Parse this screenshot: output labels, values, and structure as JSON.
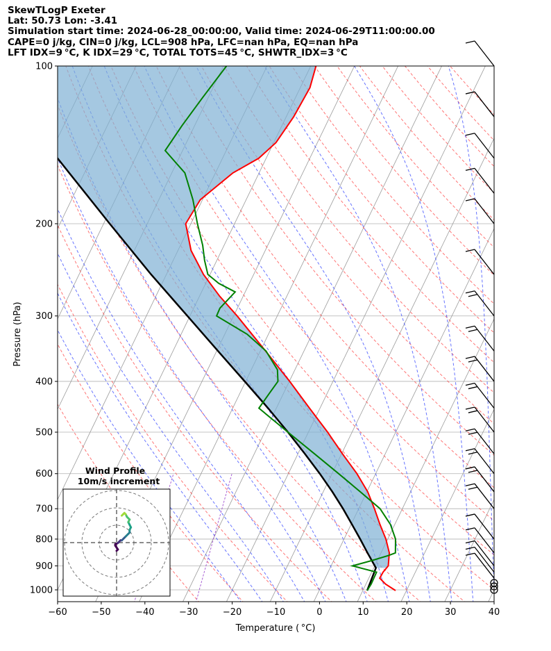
{
  "header": {
    "line1": "SkewTLogP Exeter",
    "line2": "Lat: 50.73   Lon: -3.41",
    "line3": "Simulation start time: 2024-06-28_00:00:00, Valid time: 2024-06-29T11:00:00.00",
    "line4": "CAPE=0 j/kg, CIN=0 j/kg, LCL=908 hPa, LFC=nan hPa, EQ=nan hPa",
    "line5": "LFT IDX=9 °C, K IDX=29 °C, TOTAL TOTS=45 °C, SHWTR_IDX=3 °C"
  },
  "axes": {
    "xlabel": "Temperature ( °C)",
    "ylabel": "Pressure (hPa)",
    "xticks": [
      "−60",
      "−50",
      "−40",
      "−30",
      "−20",
      "−10",
      "0",
      "10",
      "20",
      "30",
      "40"
    ],
    "yticks": [
      "100",
      "200",
      "300",
      "400",
      "500",
      "600",
      "700",
      "800",
      "900",
      "1000"
    ]
  },
  "inset": {
    "title1": "Wind Profile",
    "title2": "10m/s increment"
  },
  "colors": {
    "temperature": "#ff0000",
    "dewpoint": "#008000",
    "parcel": "#000000",
    "cape_fill": "#7fb0d4",
    "dry_adiabat": "#ff4444",
    "moist_adiabat": "#3344ff",
    "mixing_ratio": "#9944cc",
    "isotherm": "#9a9a9a",
    "isobar": "#b0b0b0"
  },
  "chart_data": {
    "type": "skewt",
    "title": "SkewTLogP Exeter",
    "xlabel": "Temperature ( °C)",
    "ylabel": "Pressure (hPa)",
    "xlim": [
      -60,
      40
    ],
    "ylim": [
      1050,
      100
    ],
    "skew_deg_c_per_decade_log_p": 58,
    "temperature_profile": {
      "p": [
        1003,
        975,
        950,
        925,
        900,
        850,
        800,
        750,
        700,
        650,
        600,
        550,
        500,
        450,
        400,
        350,
        300,
        275,
        250,
        225,
        200,
        180,
        160,
        150,
        140,
        125,
        110,
        100
      ],
      "t": [
        17.5,
        14.5,
        12.5,
        12.6,
        13.1,
        11.9,
        9.6,
        6.6,
        3.6,
        0.2,
        -4.3,
        -9.8,
        -15.6,
        -22.4,
        -29.9,
        -38.8,
        -49.2,
        -55.4,
        -61.5,
        -67.0,
        -71.2,
        -70.5,
        -66.0,
        -61.7,
        -59.5,
        -58.3,
        -57.8,
        -58.8
      ]
    },
    "dewpoint_profile": {
      "p": [
        1003,
        975,
        925,
        900,
        880,
        860,
        850,
        800,
        750,
        700,
        650,
        600,
        550,
        500,
        450,
        420,
        400,
        380,
        350,
        325,
        300,
        290,
        270,
        260,
        250,
        235,
        220,
        200,
        180,
        160,
        145,
        130,
        115,
        100
      ],
      "t": [
        11.0,
        11.2,
        11.1,
        4.9,
        8.6,
        12.0,
        13.3,
        11.8,
        9.0,
        4.9,
        -1.5,
        -8.5,
        -16.2,
        -24.7,
        -34.0,
        -33.2,
        -32.6,
        -34.0,
        -38.7,
        -44.9,
        -53.9,
        -54.0,
        -52.3,
        -57.0,
        -60.5,
        -62.8,
        -64.9,
        -68.5,
        -72.2,
        -77.0,
        -84.0,
        -82.9,
        -81.3,
        -79.3
      ]
    },
    "parcel_profile": {
      "p": [
        1003,
        908,
        850,
        800,
        750,
        700,
        650,
        600,
        550,
        500,
        450,
        400,
        350,
        300,
        250,
        200,
        150,
        100
      ],
      "t": [
        11.0,
        10.5,
        6.9,
        3.7,
        0.2,
        -3.6,
        -7.9,
        -12.8,
        -18.4,
        -24.7,
        -31.9,
        -40.2,
        -49.7,
        -60.6,
        -73.5,
        -88.6,
        -107.8,
        -135.0
      ]
    },
    "cape_shading": "between parcel and temperature, 908-100 hPa",
    "wind_barb_levels_hpa": [
      1000,
      985,
      970,
      950,
      925,
      900,
      850,
      800,
      700,
      650,
      600,
      550,
      500,
      450,
      400,
      350,
      300,
      250,
      200,
      175,
      150,
      125,
      100
    ],
    "wind_profile_hodograph": {
      "title": "Wind Profile",
      "subtitle": "10m/s increment",
      "u": [
        0,
        1,
        -1,
        -1,
        1,
        2,
        3,
        4,
        5,
        6,
        7,
        8,
        9,
        10,
        10,
        11,
        10,
        9,
        10,
        8,
        7,
        6,
        5,
        4
      ],
      "v": [
        -2,
        -1,
        2,
        3,
        4,
        5,
        6,
        6,
        7,
        8,
        9,
        10,
        11,
        12,
        14,
        16,
        18,
        20,
        22,
        24,
        26,
        27,
        26,
        25
      ]
    }
  }
}
